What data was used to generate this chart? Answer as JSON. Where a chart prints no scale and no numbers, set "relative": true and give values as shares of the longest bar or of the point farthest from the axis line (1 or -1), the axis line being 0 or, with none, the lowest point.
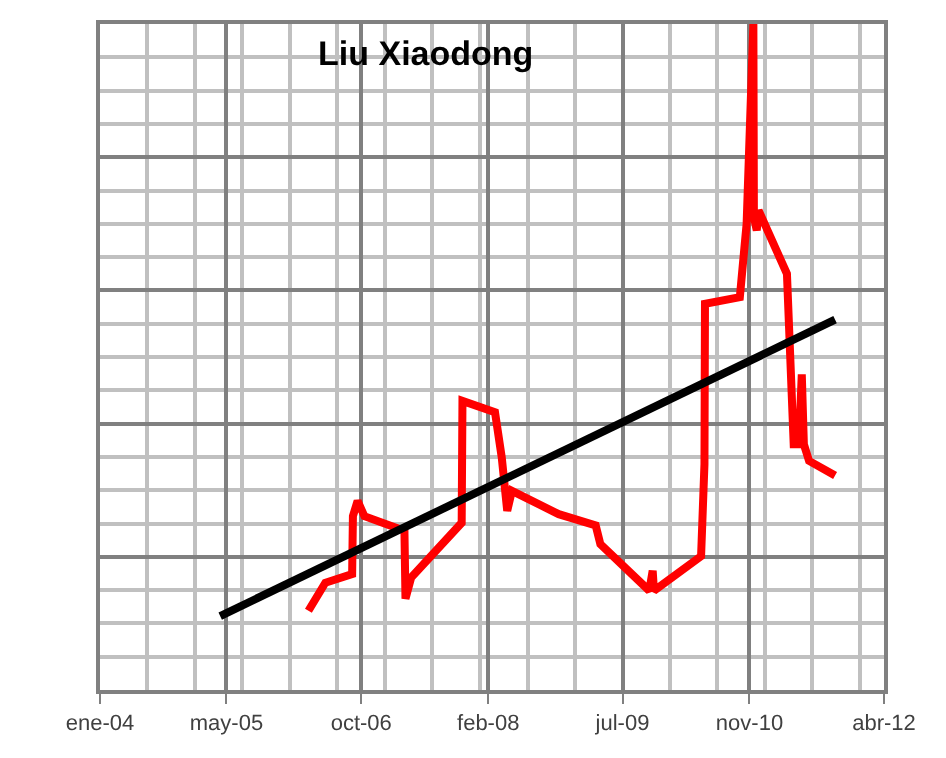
{
  "chart_data": {
    "type": "line",
    "title": "Liu Xiaodong",
    "relative": true,
    "grid": true,
    "marker": "none",
    "line_style": "solid",
    "xlim": [
      "2004-01-01",
      "2012-04-01"
    ],
    "xticks": [
      {
        "value": "2004-01-01",
        "label": "ene-04"
      },
      {
        "value": "2005-05-01",
        "label": "may-05"
      },
      {
        "value": "2006-10-01",
        "label": "oct-06"
      },
      {
        "value": "2008-02-01",
        "label": "feb-08"
      },
      {
        "value": "2009-07-01",
        "label": "jul-09"
      },
      {
        "value": "2010-11-01",
        "label": "nov-10"
      },
      {
        "value": "2012-04-01",
        "label": "abr-12"
      }
    ],
    "series": [
      {
        "color": "#ff0000",
        "x": [
          "2006-03-12",
          "2006-05-16",
          "2006-08-27",
          "2006-08-30",
          "2006-09-17",
          "2006-10-13",
          "2007-03-16",
          "2007-03-20",
          "2007-04-11",
          "2007-10-22",
          "2007-10-25",
          "2008-02-27",
          "2008-03-24",
          "2008-04-14",
          "2008-05-02",
          "2008-10-29",
          "2009-03-20",
          "2009-04-07",
          "2009-10-12",
          "2009-10-25",
          "2009-10-30",
          "2010-04-29",
          "2010-05-12",
          "2010-05-14",
          "2010-09-25",
          "2010-10-21",
          "2010-11-16",
          "2010-11-18",
          "2010-11-29",
          "2010-12-06",
          "2011-03-25",
          "2011-04-20",
          "2011-05-10",
          "2011-05-21",
          "2011-05-29",
          "2011-06-18",
          "2011-09-26"
        ],
        "values": [
          0.119,
          0.161,
          0.174,
          0.261,
          0.284,
          0.261,
          0.239,
          0.137,
          0.169,
          0.251,
          0.434,
          0.417,
          0.349,
          0.269,
          0.299,
          0.264,
          0.247,
          0.219,
          0.149,
          0.179,
          0.149,
          0.201,
          0.339,
          0.58,
          0.59,
          0.7,
          1.0,
          0.71,
          0.69,
          0.72,
          0.625,
          0.369,
          0.369,
          0.474,
          0.369,
          0.344,
          0.322
        ]
      },
      {
        "color": "#000000",
        "x": [
          "2005-04-07",
          "2011-09-26"
        ],
        "values": [
          0.111,
          0.556
        ]
      }
    ]
  }
}
